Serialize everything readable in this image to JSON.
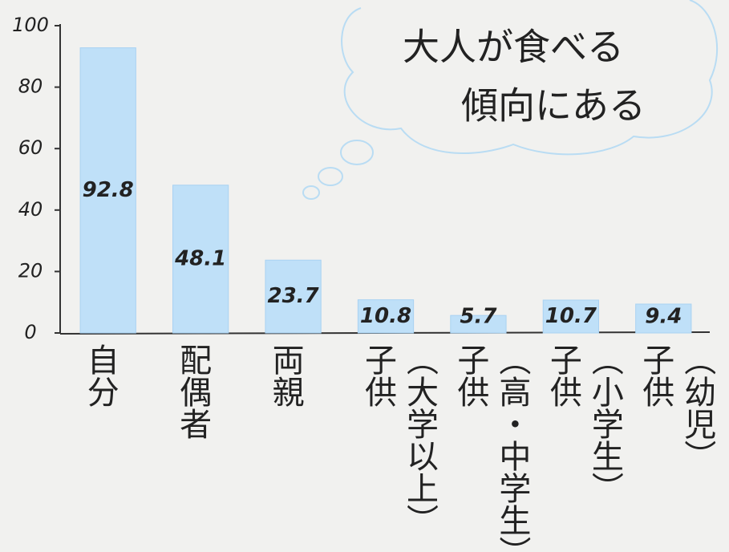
{
  "chart_data": {
    "type": "bar",
    "annotation": [
      "大人が食べる",
      "傾向にある"
    ],
    "categories": [
      "自分",
      "配偶者",
      "両親",
      "子供\n（大学以上）",
      "子供\n（高・中学生）",
      "子供\n（小学生）",
      "子供\n（幼児）"
    ],
    "values": [
      92.8,
      48.1,
      23.7,
      10.8,
      5.7,
      10.7,
      9.4
    ],
    "color": "#bfe0f8",
    "ylim": [
      0,
      100
    ],
    "yticks": [
      0,
      20,
      40,
      60,
      80,
      100
    ],
    "grid": false
  }
}
